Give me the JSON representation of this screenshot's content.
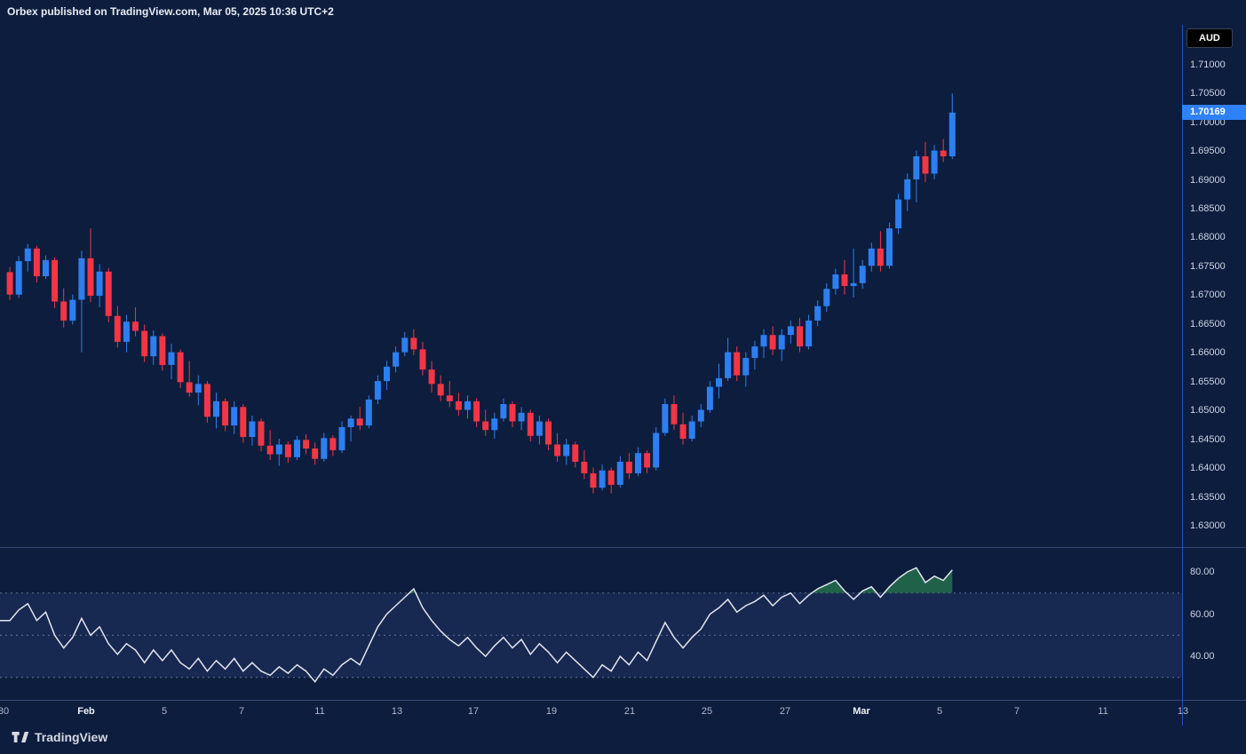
{
  "header": {
    "publish_line": "Orbex published on TradingView.com, Mar 05, 2025 10:36 UTC+2"
  },
  "symbol_badge": {
    "label": "AUD"
  },
  "price_axis": {
    "labels": [
      "1.71000",
      "1.70500",
      "1.70000",
      "1.69500",
      "1.69000",
      "1.68500",
      "1.68000",
      "1.67500",
      "1.67000",
      "1.66500",
      "1.66000",
      "1.65500",
      "1.65000",
      "1.64500",
      "1.64000",
      "1.63500",
      "1.63000"
    ],
    "current_price_label": "1.70169"
  },
  "rsi_axis": {
    "labels": [
      "80.00",
      "60.00",
      "40.00"
    ]
  },
  "time_axis": {
    "labels": [
      {
        "text": "30",
        "x": 4,
        "bold": false
      },
      {
        "text": "Feb",
        "x": 97,
        "bold": true
      },
      {
        "text": "5",
        "x": 185,
        "bold": false
      },
      {
        "text": "7",
        "x": 272,
        "bold": false
      },
      {
        "text": "11",
        "x": 360,
        "bold": false
      },
      {
        "text": "13",
        "x": 447,
        "bold": false
      },
      {
        "text": "17",
        "x": 533,
        "bold": false
      },
      {
        "text": "19",
        "x": 621,
        "bold": false
      },
      {
        "text": "21",
        "x": 709,
        "bold": false
      },
      {
        "text": "25",
        "x": 796,
        "bold": false
      },
      {
        "text": "27",
        "x": 884,
        "bold": false
      },
      {
        "text": "Mar",
        "x": 970,
        "bold": true
      },
      {
        "text": "5",
        "x": 1058,
        "bold": false
      },
      {
        "text": "7",
        "x": 1145,
        "bold": false
      },
      {
        "text": "11",
        "x": 1242,
        "bold": false
      },
      {
        "text": "13",
        "x": 1332,
        "bold": false
      }
    ]
  },
  "footer": {
    "logo_text": "TradingView"
  },
  "colors": {
    "background": "#0d1d3e",
    "up": "#2d7ff0",
    "down": "#f23645",
    "price_label_bg": "#2f81f7",
    "separator": "#55679b",
    "axis_border": "#2a5bd7",
    "rsi_line": "#e2e6ef",
    "rsi_band_line": "#6c7ca6",
    "rsi_band_fill": "rgba(116,134,255,0.10)",
    "rsi_overbought_fill": "#236b4c",
    "text": "#cdd5e3",
    "text_bright": "#eef1f7"
  },
  "chart_data": [
    {
      "type": "candlestick",
      "name": "price",
      "pane": "main",
      "title": "",
      "xlabel": "",
      "ylabel": "",
      "ylim": [
        1.6263,
        1.7169
      ],
      "last_price": 1.70169,
      "ohlc": [
        [
          1.674,
          1.6749,
          1.6692,
          1.6701
        ],
        [
          1.6701,
          1.6768,
          1.6695,
          1.6759
        ],
        [
          1.6759,
          1.6789,
          1.6741,
          1.6781
        ],
        [
          1.6781,
          1.6786,
          1.6722,
          1.6733
        ],
        [
          1.6733,
          1.6769,
          1.6728,
          1.6761
        ],
        [
          1.6761,
          1.6766,
          1.6678,
          1.6689
        ],
        [
          1.6689,
          1.6712,
          1.6644,
          1.6656
        ],
        [
          1.6656,
          1.6701,
          1.6649,
          1.6692
        ],
        [
          1.6692,
          1.6777,
          1.6601,
          1.6764
        ],
        [
          1.6764,
          1.6816,
          1.6688,
          1.6699
        ],
        [
          1.6699,
          1.6754,
          1.6679,
          1.6741
        ],
        [
          1.6741,
          1.6747,
          1.6653,
          1.6664
        ],
        [
          1.6664,
          1.6681,
          1.6609,
          1.6619
        ],
        [
          1.6619,
          1.6666,
          1.6601,
          1.6654
        ],
        [
          1.6654,
          1.6679,
          1.6629,
          1.6638
        ],
        [
          1.6638,
          1.6649,
          1.6584,
          1.6594
        ],
        [
          1.6594,
          1.6639,
          1.6579,
          1.6629
        ],
        [
          1.6629,
          1.6634,
          1.6569,
          1.6579
        ],
        [
          1.6579,
          1.6616,
          1.6554,
          1.6601
        ],
        [
          1.6601,
          1.6606,
          1.6539,
          1.6549
        ],
        [
          1.6549,
          1.6586,
          1.6524,
          1.6531
        ],
        [
          1.6531,
          1.6561,
          1.6509,
          1.6546
        ],
        [
          1.6546,
          1.6551,
          1.6479,
          1.6489
        ],
        [
          1.6489,
          1.6531,
          1.6469,
          1.6516
        ],
        [
          1.6516,
          1.6521,
          1.6464,
          1.6474
        ],
        [
          1.6474,
          1.6516,
          1.6459,
          1.6506
        ],
        [
          1.6506,
          1.6511,
          1.6444,
          1.6454
        ],
        [
          1.6454,
          1.6491,
          1.6439,
          1.6481
        ],
        [
          1.6481,
          1.6486,
          1.6429,
          1.6439
        ],
        [
          1.6439,
          1.6466,
          1.6414,
          1.6424
        ],
        [
          1.6424,
          1.6451,
          1.6404,
          1.6441
        ],
        [
          1.6441,
          1.6446,
          1.6409,
          1.6419
        ],
        [
          1.6419,
          1.6456,
          1.6414,
          1.6449
        ],
        [
          1.6449,
          1.6459,
          1.6424,
          1.6434
        ],
        [
          1.6434,
          1.6444,
          1.6406,
          1.6416
        ],
        [
          1.6416,
          1.6461,
          1.6411,
          1.6452
        ],
        [
          1.6452,
          1.6457,
          1.6421,
          1.6431
        ],
        [
          1.6431,
          1.6481,
          1.6426,
          1.6471
        ],
        [
          1.6471,
          1.6491,
          1.6446,
          1.6486
        ],
        [
          1.6486,
          1.6506,
          1.6466,
          1.6474
        ],
        [
          1.6474,
          1.6526,
          1.6469,
          1.6519
        ],
        [
          1.6519,
          1.6561,
          1.6511,
          1.6551
        ],
        [
          1.6551,
          1.6586,
          1.6536,
          1.6576
        ],
        [
          1.6576,
          1.6611,
          1.6566,
          1.6601
        ],
        [
          1.6601,
          1.6636,
          1.6594,
          1.6626
        ],
        [
          1.6626,
          1.6641,
          1.6596,
          1.6606
        ],
        [
          1.6606,
          1.6619,
          1.6561,
          1.6571
        ],
        [
          1.6571,
          1.6586,
          1.6531,
          1.6546
        ],
        [
          1.6546,
          1.6561,
          1.6516,
          1.6526
        ],
        [
          1.6526,
          1.6551,
          1.6506,
          1.6516
        ],
        [
          1.6516,
          1.6531,
          1.6491,
          1.6501
        ],
        [
          1.6501,
          1.6526,
          1.6486,
          1.6516
        ],
        [
          1.6516,
          1.6521,
          1.6471,
          1.6481
        ],
        [
          1.6481,
          1.6501,
          1.6456,
          1.6466
        ],
        [
          1.6466,
          1.6496,
          1.6451,
          1.6486
        ],
        [
          1.6486,
          1.6521,
          1.6481,
          1.6511
        ],
        [
          1.6511,
          1.6516,
          1.6471,
          1.6481
        ],
        [
          1.6481,
          1.6506,
          1.6466,
          1.6496
        ],
        [
          1.6496,
          1.6501,
          1.6446,
          1.6456
        ],
        [
          1.6456,
          1.6491,
          1.6441,
          1.6481
        ],
        [
          1.6481,
          1.6486,
          1.6431,
          1.6441
        ],
        [
          1.6441,
          1.6461,
          1.6411,
          1.6421
        ],
        [
          1.6421,
          1.6451,
          1.6406,
          1.6441
        ],
        [
          1.6441,
          1.6446,
          1.6401,
          1.6411
        ],
        [
          1.6411,
          1.6431,
          1.6381,
          1.6391
        ],
        [
          1.6391,
          1.6401,
          1.6356,
          1.6366
        ],
        [
          1.6366,
          1.6406,
          1.6361,
          1.6396
        ],
        [
          1.6396,
          1.6401,
          1.6356,
          1.6371
        ],
        [
          1.6371,
          1.6421,
          1.6366,
          1.6411
        ],
        [
          1.6411,
          1.6426,
          1.6381,
          1.6391
        ],
        [
          1.6391,
          1.6436,
          1.6386,
          1.6426
        ],
        [
          1.6426,
          1.6431,
          1.6391,
          1.6401
        ],
        [
          1.6401,
          1.6471,
          1.6396,
          1.6461
        ],
        [
          1.6461,
          1.6521,
          1.6456,
          1.6511
        ],
        [
          1.6511,
          1.6526,
          1.6466,
          1.6476
        ],
        [
          1.6476,
          1.6496,
          1.6441,
          1.6451
        ],
        [
          1.6451,
          1.6491,
          1.6446,
          1.6481
        ],
        [
          1.6481,
          1.6511,
          1.6471,
          1.6501
        ],
        [
          1.6501,
          1.6551,
          1.6496,
          1.6541
        ],
        [
          1.6541,
          1.6581,
          1.6521,
          1.6556
        ],
        [
          1.6556,
          1.6626,
          1.6551,
          1.6601
        ],
        [
          1.6601,
          1.6611,
          1.6551,
          1.6561
        ],
        [
          1.6561,
          1.6601,
          1.6541,
          1.6591
        ],
        [
          1.6591,
          1.6621,
          1.6571,
          1.6611
        ],
        [
          1.6611,
          1.6641,
          1.6591,
          1.6631
        ],
        [
          1.6631,
          1.6646,
          1.6596,
          1.6606
        ],
        [
          1.6606,
          1.6641,
          1.6586,
          1.6631
        ],
        [
          1.6631,
          1.6656,
          1.6616,
          1.6646
        ],
        [
          1.6646,
          1.6661,
          1.6601,
          1.6611
        ],
        [
          1.6611,
          1.6666,
          1.6606,
          1.6656
        ],
        [
          1.6656,
          1.6691,
          1.6646,
          1.6681
        ],
        [
          1.6681,
          1.6721,
          1.6671,
          1.6711
        ],
        [
          1.6711,
          1.6746,
          1.6701,
          1.6736
        ],
        [
          1.6736,
          1.6761,
          1.6701,
          1.6716
        ],
        [
          1.6716,
          1.6781,
          1.6696,
          1.6721
        ],
        [
          1.6721,
          1.6761,
          1.6711,
          1.6751
        ],
        [
          1.6751,
          1.6791,
          1.6741,
          1.6781
        ],
        [
          1.6781,
          1.6811,
          1.6741,
          1.6751
        ],
        [
          1.6751,
          1.6826,
          1.6746,
          1.6816
        ],
        [
          1.6816,
          1.6876,
          1.6806,
          1.6866
        ],
        [
          1.6866,
          1.6911,
          1.6846,
          1.6901
        ],
        [
          1.6901,
          1.6951,
          1.6861,
          1.6941
        ],
        [
          1.6941,
          1.6966,
          1.6896,
          1.6911
        ],
        [
          1.6911,
          1.6961,
          1.6901,
          1.6951
        ],
        [
          1.6951,
          1.6971,
          1.6931,
          1.6941
        ],
        [
          1.6941,
          1.705,
          1.6936,
          1.70169
        ]
      ]
    },
    {
      "type": "line",
      "name": "RSI",
      "pane": "lower",
      "ylim": [
        19.4,
        91.8
      ],
      "levels": [
        70,
        50,
        30
      ],
      "band": [
        30,
        70
      ],
      "overbought_level": 70,
      "values": [
        57,
        62,
        65,
        57,
        61,
        50,
        44,
        49,
        58,
        50,
        54,
        46,
        41,
        46,
        43,
        37,
        43,
        38,
        43,
        37,
        34,
        39,
        33,
        38,
        34,
        39,
        33,
        37,
        33,
        31,
        35,
        32,
        36,
        33,
        28,
        34,
        31,
        36,
        39,
        36,
        45,
        54,
        60,
        64,
        68,
        72,
        63,
        57,
        52,
        48,
        45,
        49,
        44,
        40,
        45,
        49,
        44,
        48,
        41,
        46,
        42,
        37,
        42,
        38,
        34,
        30,
        36,
        33,
        40,
        36,
        42,
        38,
        47,
        56,
        49,
        44,
        49,
        53,
        60,
        63,
        67,
        61,
        64,
        66,
        69,
        64,
        68,
        70,
        65,
        69,
        72,
        74,
        76,
        71,
        67,
        71,
        73,
        68,
        73,
        77,
        80,
        82,
        75,
        78,
        76,
        81
      ]
    }
  ]
}
